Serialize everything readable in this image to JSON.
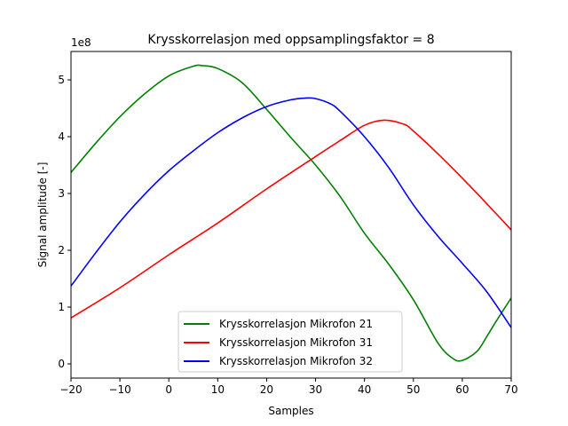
{
  "chart_data": {
    "type": "line",
    "title": "Krysskorrelasjon med oppsamplingsfaktor = 8",
    "xlabel": "Samples",
    "ylabel": "Signal amplitude [-]",
    "y_offset_label": "1e8",
    "xlim": [
      -20,
      70
    ],
    "ylim": [
      -0.25,
      5.5
    ],
    "y_scale_note": "values in units of 1e8",
    "x_ticks": [
      -20,
      -10,
      0,
      10,
      20,
      30,
      40,
      50,
      60,
      70
    ],
    "x_tick_labels": [
      "−20",
      "−10",
      "0",
      "10",
      "20",
      "30",
      "40",
      "50",
      "60",
      "70"
    ],
    "y_ticks": [
      0,
      1,
      2,
      3,
      4,
      5
    ],
    "y_tick_labels": [
      "0",
      "1",
      "2",
      "3",
      "4",
      "5"
    ],
    "grid": false,
    "legend_position": "lower-center",
    "series": [
      {
        "name": "Krysskorrelasjon Mikrofon 21",
        "color": "#008000",
        "x": [
          -20,
          -15,
          -10,
          -5,
          0,
          5,
          7,
          10,
          15,
          20,
          25,
          30,
          35,
          40,
          45,
          50,
          55,
          58,
          60,
          63,
          65,
          67,
          70
        ],
        "y": [
          3.37,
          3.88,
          4.35,
          4.75,
          5.07,
          5.24,
          5.25,
          5.2,
          4.95,
          4.48,
          3.98,
          3.5,
          2.95,
          2.3,
          1.75,
          1.13,
          0.37,
          0.1,
          0.06,
          0.22,
          0.48,
          0.76,
          1.16
        ]
      },
      {
        "name": "Krysskorrelasjon Mikrofon 31",
        "color": "#ff0000",
        "x": [
          -20,
          -10,
          0,
          10,
          20,
          30,
          35,
          40,
          44,
          48,
          50,
          55,
          60,
          65,
          70
        ],
        "y": [
          0.81,
          1.34,
          1.92,
          2.48,
          3.08,
          3.65,
          3.93,
          4.2,
          4.29,
          4.22,
          4.1,
          3.7,
          3.27,
          2.82,
          2.36
        ]
      },
      {
        "name": "Krysskorrelasjon Mikrofon 32",
        "color": "#0000ff",
        "x": [
          -20,
          -15,
          -10,
          -5,
          0,
          5,
          10,
          15,
          20,
          25,
          28,
          30,
          33,
          35,
          40,
          45,
          50,
          55,
          60,
          65,
          70
        ],
        "y": [
          1.37,
          1.95,
          2.5,
          2.98,
          3.4,
          3.75,
          4.07,
          4.33,
          4.53,
          4.65,
          4.68,
          4.67,
          4.58,
          4.45,
          4.0,
          3.45,
          2.8,
          2.25,
          1.77,
          1.27,
          0.64
        ]
      }
    ]
  }
}
